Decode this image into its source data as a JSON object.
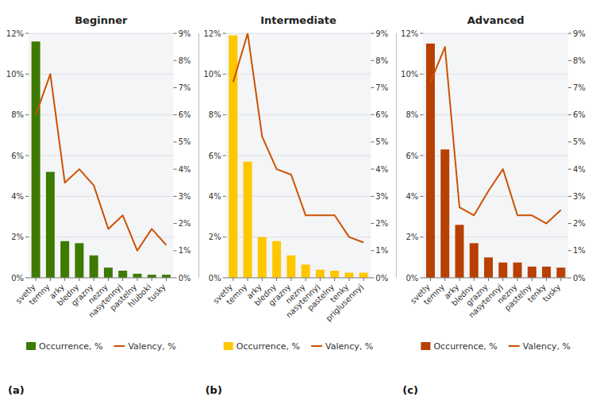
{
  "chart_data": [
    {
      "type": "bar",
      "title": "Beginner",
      "categories": [
        "svetly",
        "temny",
        "arky",
        "bledny",
        "grazny",
        "nezny",
        "nasytennyj",
        "pastelny",
        "hluboki",
        "tusky"
      ],
      "series": [
        {
          "name": "Occurrence, %",
          "type": "bar",
          "color": "#3d7a00",
          "values": [
            11.6,
            5.2,
            1.8,
            1.7,
            1.1,
            0.5,
            0.35,
            0.2,
            0.15,
            0.15
          ]
        },
        {
          "name": "Valency, %",
          "type": "line",
          "axis": "y2",
          "color": "#cc5200",
          "values": [
            6.0,
            7.5,
            3.5,
            4.0,
            3.4,
            1.8,
            2.3,
            1.0,
            1.8,
            1.2
          ]
        }
      ],
      "ylim": [
        0,
        12
      ],
      "yticks": [
        {
          "value": 0,
          "label": "0%"
        },
        {
          "value": 2,
          "label": "2%"
        },
        {
          "value": 4,
          "label": "4%"
        },
        {
          "value": 6,
          "label": "6%"
        },
        {
          "value": 8,
          "label": "8%"
        },
        {
          "value": 10,
          "label": "10%"
        },
        {
          "value": 12,
          "label": "12%"
        }
      ],
      "y2lim": [
        0,
        9
      ],
      "y2ticks": [
        {
          "value": 0,
          "label": "0%"
        },
        {
          "value": 1,
          "label": "1%"
        },
        {
          "value": 2,
          "label": "2%"
        },
        {
          "value": 3,
          "label": "3%"
        },
        {
          "value": 4,
          "label": "4%"
        },
        {
          "value": 5,
          "label": "5%"
        },
        {
          "value": 6,
          "label": "6%"
        },
        {
          "value": 7,
          "label": "7%"
        },
        {
          "value": 8,
          "label": "8%"
        },
        {
          "value": 9,
          "label": "9%"
        }
      ],
      "grid": true,
      "legend": "bottom",
      "annotations": [
        "(a)"
      ]
    },
    {
      "type": "bar",
      "title": "Intermediate",
      "categories": [
        "svetly",
        "temny",
        "arky",
        "bledny",
        "grazny",
        "nezny",
        "nasytennyj",
        "pastelny",
        "tenky",
        "priglusennyj"
      ],
      "series": [
        {
          "name": "Occurrence, %",
          "type": "bar",
          "color": "#ffc700",
          "values": [
            11.9,
            5.7,
            2.0,
            1.8,
            1.1,
            0.65,
            0.4,
            0.35,
            0.25,
            0.25
          ]
        },
        {
          "name": "Valency, %",
          "type": "line",
          "axis": "y2",
          "color": "#cc5200",
          "values": [
            7.2,
            9.0,
            5.2,
            4.0,
            3.8,
            2.3,
            2.3,
            2.3,
            1.5,
            1.3
          ]
        }
      ],
      "ylim": [
        0,
        12
      ],
      "yticks": [
        {
          "value": 0,
          "label": "0%"
        },
        {
          "value": 2,
          "label": "2%"
        },
        {
          "value": 4,
          "label": "4%"
        },
        {
          "value": 6,
          "label": "6%"
        },
        {
          "value": 8,
          "label": "8%"
        },
        {
          "value": 10,
          "label": "10%"
        },
        {
          "value": 12,
          "label": "12%"
        }
      ],
      "y2lim": [
        0,
        9
      ],
      "y2ticks": [
        {
          "value": 0,
          "label": "0%"
        },
        {
          "value": 1,
          "label": "1%"
        },
        {
          "value": 2,
          "label": "2%"
        },
        {
          "value": 3,
          "label": "3%"
        },
        {
          "value": 4,
          "label": "4%"
        },
        {
          "value": 5,
          "label": "5%"
        },
        {
          "value": 6,
          "label": "6%"
        },
        {
          "value": 7,
          "label": "7%"
        },
        {
          "value": 8,
          "label": "8%"
        },
        {
          "value": 9,
          "label": "9%"
        }
      ],
      "grid": true,
      "legend": "bottom",
      "annotations": [
        "(b)"
      ]
    },
    {
      "type": "bar",
      "title": "Advanced",
      "categories": [
        "svetly",
        "temny",
        "arky",
        "bledny",
        "grazny",
        "nasytennyj",
        "nezny",
        "pastelny",
        "tenky",
        "tusky"
      ],
      "series": [
        {
          "name": "Occurrence, %",
          "type": "bar",
          "color": "#b84000",
          "values": [
            11.5,
            6.3,
            2.6,
            1.7,
            1.0,
            0.75,
            0.75,
            0.55,
            0.55,
            0.5
          ]
        },
        {
          "name": "Valency, %",
          "type": "line",
          "axis": "y2",
          "color": "#cc5200",
          "values": [
            7.2,
            8.5,
            2.6,
            2.3,
            3.2,
            4.0,
            2.3,
            2.3,
            2.0,
            2.5
          ]
        }
      ],
      "ylim": [
        0,
        12
      ],
      "yticks": [
        {
          "value": 0,
          "label": "0%"
        },
        {
          "value": 2,
          "label": "2%"
        },
        {
          "value": 4,
          "label": "4%"
        },
        {
          "value": 6,
          "label": "6%"
        },
        {
          "value": 8,
          "label": "8%"
        },
        {
          "value": 10,
          "label": "10%"
        },
        {
          "value": 12,
          "label": "12%"
        }
      ],
      "y2lim": [
        0,
        9
      ],
      "y2ticks": [
        {
          "value": 0,
          "label": "0%"
        },
        {
          "value": 1,
          "label": "1%"
        },
        {
          "value": 2,
          "label": "2%"
        },
        {
          "value": 3,
          "label": "3%"
        },
        {
          "value": 4,
          "label": "4%"
        },
        {
          "value": 5,
          "label": "5%"
        },
        {
          "value": 6,
          "label": "6%"
        },
        {
          "value": 7,
          "label": "7%"
        },
        {
          "value": 8,
          "label": "8%"
        },
        {
          "value": 9,
          "label": "9%"
        }
      ],
      "grid": true,
      "legend": "bottom",
      "annotations": [
        "(c)"
      ]
    }
  ]
}
